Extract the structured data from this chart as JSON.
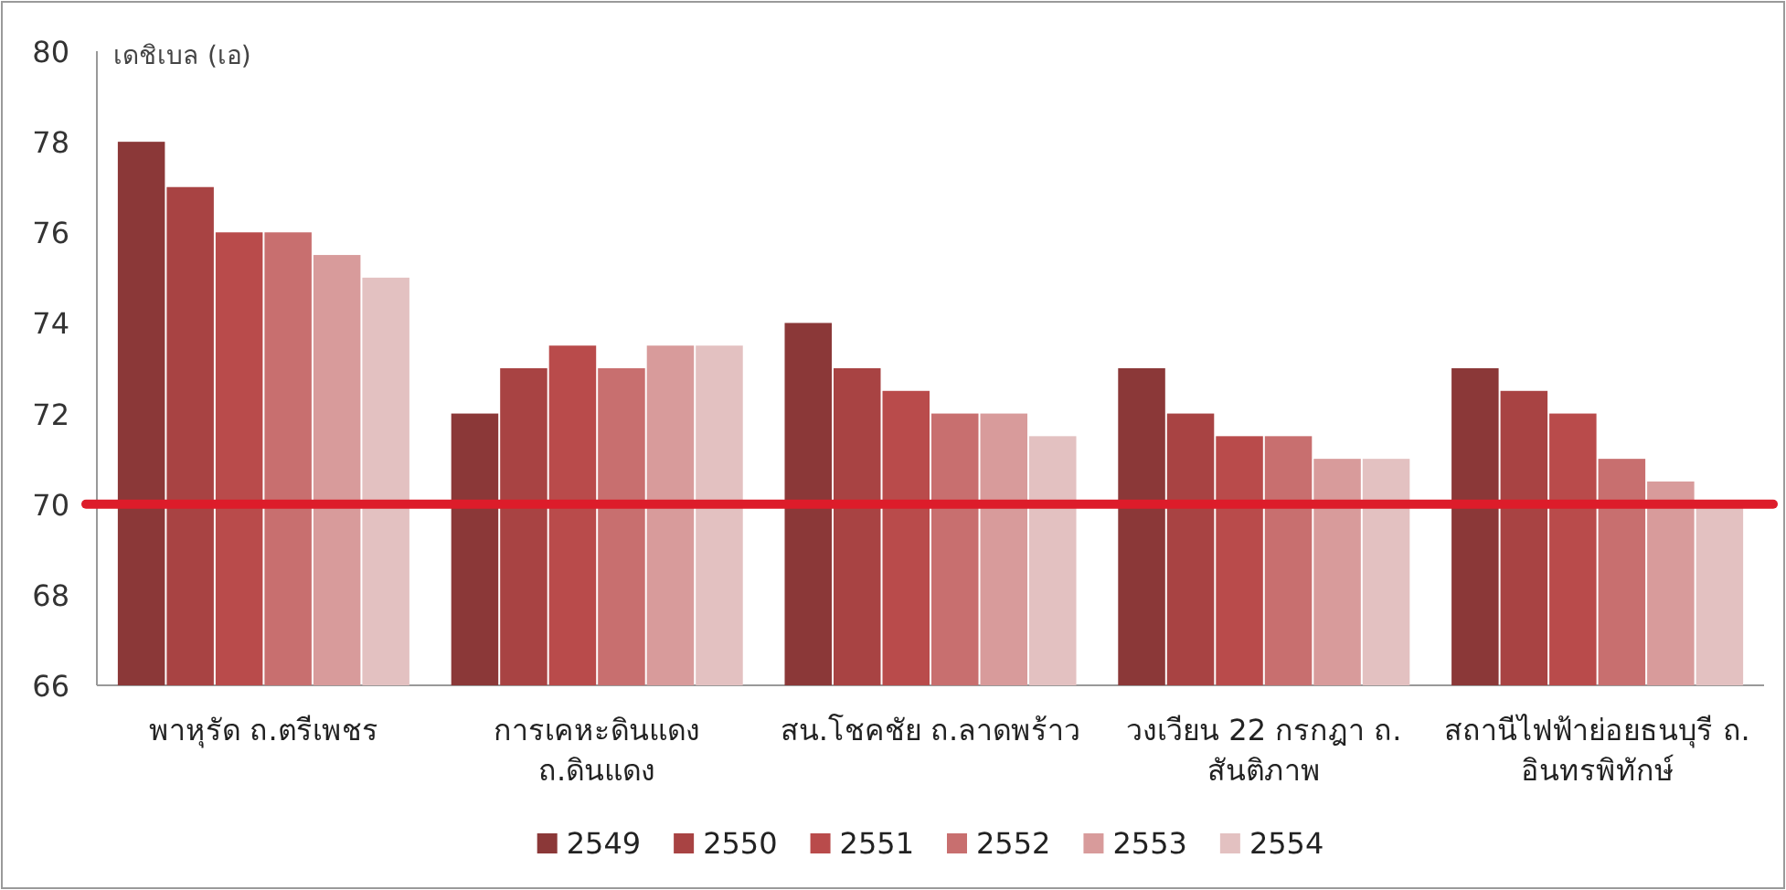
{
  "chart_data": {
    "type": "bar",
    "ylabel": "เดชิเบล (เอ)",
    "categories": [
      "พาหุรัด  ถ.ตรีเพชร",
      "การเคหะดินแดง  ถ.ดินแดง",
      "สน.โชคชัย  ถ.ลาดพร้าว",
      "วงเวียน  22  กรกฎา  ถ. สันติภาพ",
      "สถานีไฟฟ้าย่อยธนบุรี  ถ. อินทรพิทักษ์"
    ],
    "series": [
      {
        "name": "2549",
        "color": "#8b3838",
        "values": [
          78,
          72,
          74,
          73,
          73
        ]
      },
      {
        "name": "2550",
        "color": "#a84343",
        "values": [
          77,
          73,
          73,
          72,
          72.5
        ]
      },
      {
        "name": "2551",
        "color": "#b94b4b",
        "values": [
          76,
          73.5,
          72.5,
          71.5,
          72
        ]
      },
      {
        "name": "2552",
        "color": "#c86f6f",
        "values": [
          76,
          73,
          72,
          71.5,
          71
        ]
      },
      {
        "name": "2553",
        "color": "#d89b9b",
        "values": [
          75.5,
          73.5,
          72,
          71,
          70.5
        ]
      },
      {
        "name": "2554",
        "color": "#e3c1c1",
        "values": [
          75,
          73.5,
          71.5,
          71,
          70
        ]
      }
    ],
    "ylim": [
      66,
      80
    ],
    "yticks": [
      66,
      68,
      70,
      72,
      74,
      76,
      78,
      80
    ],
    "ref_lines": [
      {
        "axis": "y",
        "value": 70,
        "color": "#dd1c2a"
      }
    ],
    "grid": false,
    "legend": "bottom"
  }
}
